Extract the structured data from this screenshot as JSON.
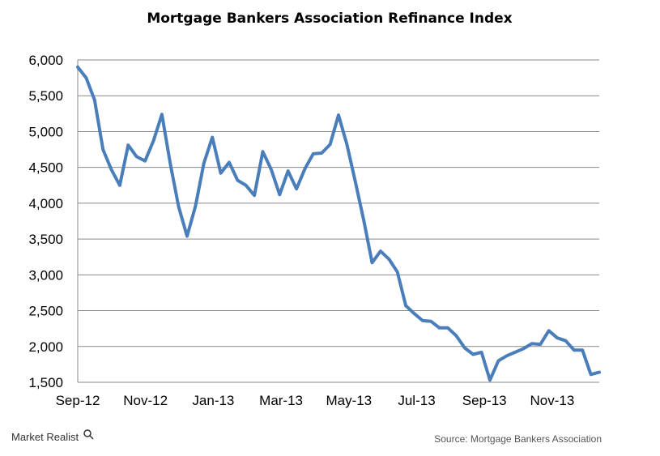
{
  "chart_data": {
    "type": "line",
    "title": "Mortgage Bankers Association Refinance Index",
    "xlabel": "",
    "ylabel": "",
    "ylim": [
      1500,
      6000
    ],
    "yticks": [
      "1,500",
      "2,000",
      "2,500",
      "3,000",
      "3,500",
      "4,000",
      "4,500",
      "5,000",
      "5,500",
      "6,000"
    ],
    "xticks": [
      "Sep-12",
      "Nov-12",
      "Jan-13",
      "Mar-13",
      "May-13",
      "Jul-13",
      "Sep-13",
      "Nov-13"
    ],
    "grid": true,
    "series": [
      {
        "color": "#4A7EBB",
        "values": [
          5900,
          5750,
          5440,
          4750,
          4470,
          4250,
          4810,
          4650,
          4590,
          4870,
          5240,
          4550,
          3950,
          3540,
          3960,
          4560,
          4920,
          4420,
          4570,
          4320,
          4250,
          4110,
          4720,
          4470,
          4120,
          4450,
          4200,
          4480,
          4690,
          4700,
          4820,
          5230,
          4820,
          4300,
          3760,
          3170,
          3330,
          3220,
          3040,
          2570,
          2460,
          2360,
          2350,
          2260,
          2260,
          2150,
          1980,
          1890,
          1920,
          1530,
          1800,
          1870,
          1920,
          1970,
          2040,
          2030,
          2220,
          2120,
          2080,
          1950,
          1950,
          1610,
          1640
        ]
      }
    ]
  },
  "footer": {
    "brand": "Market Realist",
    "source": "Source: Mortgage Bankers Association"
  }
}
